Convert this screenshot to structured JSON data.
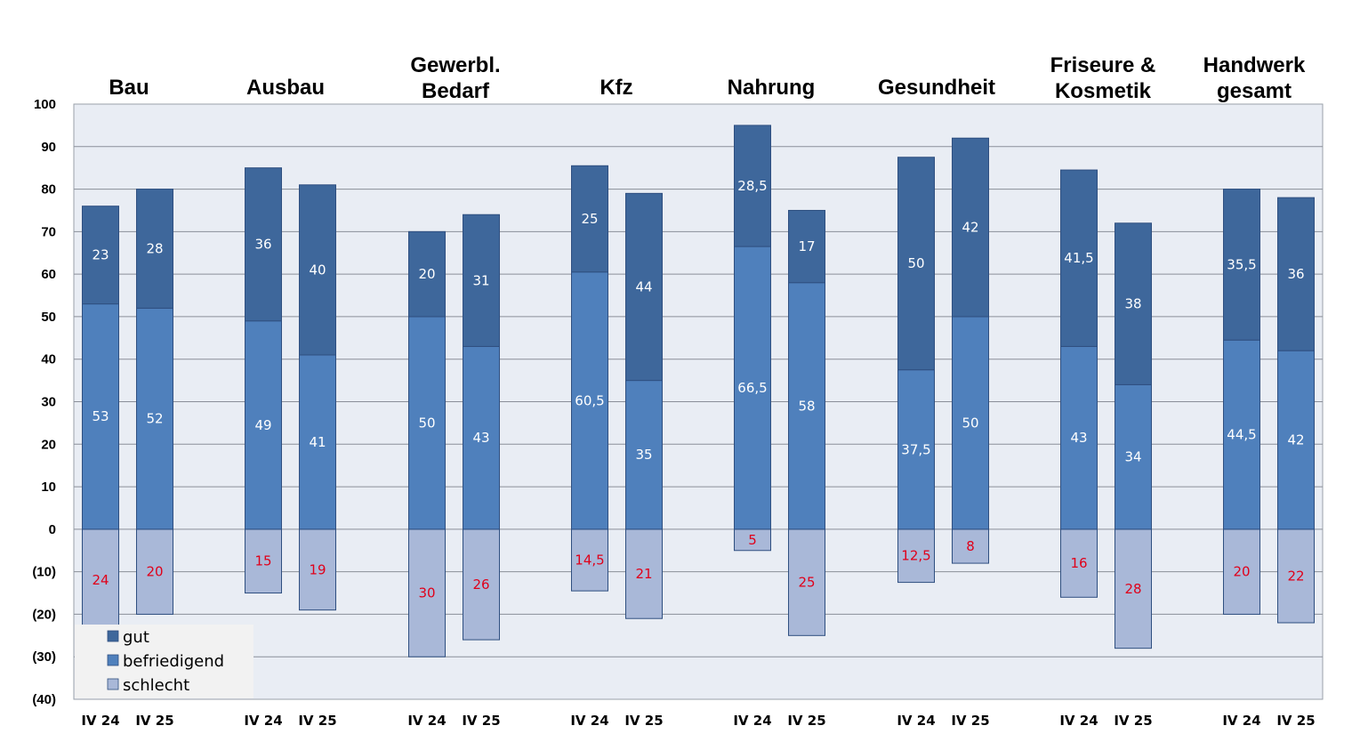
{
  "chart_data": {
    "type": "bar",
    "stacked": true,
    "title": "",
    "xlabel": "",
    "ylabel": "",
    "ylim": [
      -40,
      100
    ],
    "y_ticks": [
      100,
      90,
      80,
      70,
      60,
      50,
      40,
      30,
      20,
      10,
      0,
      -10,
      -20,
      -30,
      -40
    ],
    "y_tick_labels": [
      "100",
      "90",
      "80",
      "70",
      "60",
      "50",
      "40",
      "30",
      "20",
      "10",
      "0",
      "(10)",
      "(20)",
      "(30)",
      "(40)"
    ],
    "grid": true,
    "legend_position": "bottom-left",
    "period_labels": [
      "IV 24",
      "IV 25"
    ],
    "groups": [
      {
        "title": [
          "Bau"
        ],
        "periods": [
          {
            "gut": 23,
            "befriedigend": 53,
            "schlecht": 24
          },
          {
            "gut": 28,
            "befriedigend": 52,
            "schlecht": 20
          }
        ]
      },
      {
        "title": [
          "Ausbau"
        ],
        "periods": [
          {
            "gut": 36,
            "befriedigend": 49,
            "schlecht": 15
          },
          {
            "gut": 40,
            "befriedigend": 41,
            "schlecht": 19
          }
        ]
      },
      {
        "title": [
          "Gewerbl.",
          "Bedarf"
        ],
        "periods": [
          {
            "gut": 20,
            "befriedigend": 50,
            "schlecht": 30
          },
          {
            "gut": 31,
            "befriedigend": 43,
            "schlecht": 26
          }
        ]
      },
      {
        "title": [
          "Kfz"
        ],
        "periods": [
          {
            "gut": 25,
            "befriedigend": 60.5,
            "schlecht": 14.5
          },
          {
            "gut": 44,
            "befriedigend": 35,
            "schlecht": 21
          }
        ]
      },
      {
        "title": [
          "Nahrung"
        ],
        "periods": [
          {
            "gut": 28.5,
            "befriedigend": 66.5,
            "schlecht": 5
          },
          {
            "gut": 17,
            "befriedigend": 58,
            "schlecht": 25
          }
        ]
      },
      {
        "title": [
          "Gesundheit"
        ],
        "periods": [
          {
            "gut": 50,
            "befriedigend": 37.5,
            "schlecht": 12.5
          },
          {
            "gut": 42,
            "befriedigend": 50,
            "schlecht": 8
          }
        ]
      },
      {
        "title": [
          "Friseure &",
          "Kosmetik"
        ],
        "periods": [
          {
            "gut": 41.5,
            "befriedigend": 43,
            "schlecht": 16
          },
          {
            "gut": 38,
            "befriedigend": 34,
            "schlecht": 28
          }
        ]
      },
      {
        "title": [
          "Handwerk",
          "gesamt"
        ],
        "periods": [
          {
            "gut": 35.5,
            "befriedigend": 44.5,
            "schlecht": 20
          },
          {
            "gut": 36,
            "befriedigend": 42,
            "schlecht": 22
          }
        ]
      }
    ],
    "series": [
      {
        "name": "gut",
        "color": "#3e679b"
      },
      {
        "name": "befriedigend",
        "color": "#4f80bc"
      },
      {
        "name": "schlecht",
        "color": "#a9b8d8"
      }
    ],
    "colors": {
      "plot_background": "#e9edf4",
      "gridline": "#8a8f99",
      "label_positive": "#ffffff",
      "label_negative": "#e0001a",
      "legend_background": "#f2f2f2"
    }
  }
}
